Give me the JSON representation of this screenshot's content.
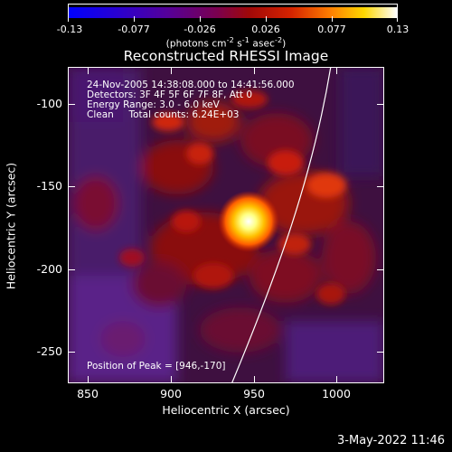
{
  "colorbar": {
    "tick_labels": [
      "-0.13",
      "-0.077",
      "-0.026",
      "0.026",
      "0.077",
      "0.13"
    ],
    "units_text": "(photons cm",
    "units_exp1": "-2",
    "units_mid": " s",
    "units_exp2": "-1",
    "units_tail": " asec",
    "units_exp3": "-2",
    "units_close": ")",
    "colors": [
      "#0000ff",
      "#2c00d8",
      "#5a009a",
      "#7a0050",
      "#a00000",
      "#d52000",
      "#ff7a00",
      "#ffd200",
      "#ffff70",
      "#ffffff"
    ]
  },
  "title": "Reconstructed RHESSI Image",
  "info": {
    "line1": "24-Nov-2005 14:38:08.000 to 14:41:56.000",
    "line2": "Detectors: 3F 4F 5F 6F 7F 8F, Att 0",
    "line3": "Energy Range: 3.0 - 6.0 keV",
    "line4": "Clean     Total counts: 6.24E+03"
  },
  "peak_text": "Position of Peak = [946,-170]",
  "y_axis": {
    "title": "Heliocentric Y (arcsec)",
    "ticks": [
      "-100",
      "-150",
      "-200",
      "-250"
    ]
  },
  "x_axis": {
    "title": "Heliocentric X (arcsec)",
    "ticks": [
      "850",
      "900",
      "950",
      "1000"
    ]
  },
  "footer_date": "3-May-2022 11:46"
}
